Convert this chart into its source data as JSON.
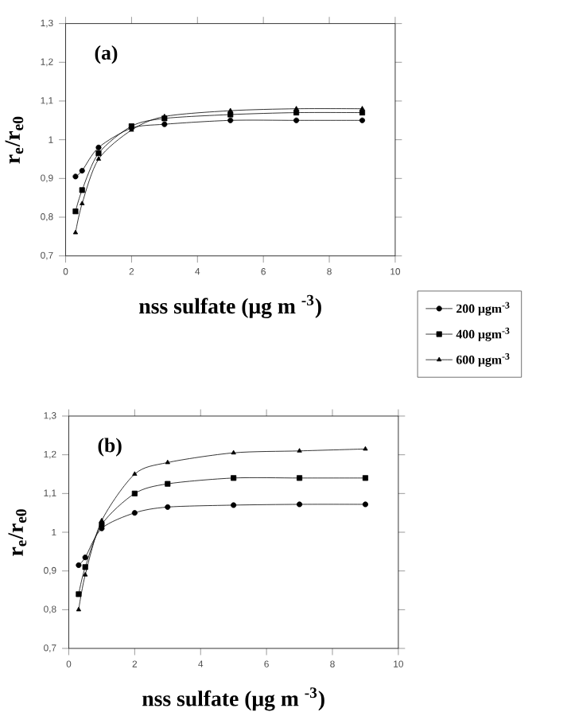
{
  "chart_data": [
    {
      "type": "line",
      "title": "(a)",
      "xlabel": "nss sulfate (μg m $^{-3}$)",
      "ylabel": "r$_{e}$/r$_{e0}$",
      "line_style": "solid",
      "legend": "bottom right",
      "xlim": [
        0,
        10
      ],
      "xticks": [
        0,
        2,
        4,
        6,
        8,
        10
      ],
      "ylim": [
        0.7,
        1.3
      ],
      "yticks": [
        {
          "value": 0.7,
          "label": "0,7"
        },
        {
          "value": 0.8,
          "label": "0,8"
        },
        {
          "value": 0.9,
          "label": "0,9"
        },
        1,
        {
          "value": 1.1,
          "label": "1,1"
        },
        {
          "value": 1.2,
          "label": "1,2"
        },
        {
          "value": 1.3,
          "label": "1,3"
        }
      ],
      "x": [
        0.3,
        0.5,
        1,
        2,
        3,
        5,
        7,
        9
      ],
      "series": [
        {
          "name": "200 μgm$^{-3}$",
          "color": "#000000",
          "marker": "circle",
          "values": [
            0.905,
            0.92,
            0.98,
            1.03,
            1.04,
            1.05,
            1.05,
            1.05
          ]
        },
        {
          "name": "400 μgm$^{-3}$",
          "color": "#000000",
          "marker": "square",
          "values": [
            0.815,
            0.87,
            0.965,
            1.035,
            1.055,
            1.065,
            1.07,
            1.07
          ]
        },
        {
          "name": "600 μgm$^{-3}$",
          "color": "#000000",
          "marker": "triangle",
          "values": [
            0.76,
            0.835,
            0.95,
            1.025,
            1.06,
            1.075,
            1.08,
            1.08
          ]
        }
      ]
    },
    {
      "type": "line",
      "title": "(b)",
      "xlabel": "nss sulfate (μg m $^{-3}$)",
      "ylabel": "r$_{e}$/r$_{e0}$",
      "line_style": "solid",
      "xlim": [
        0,
        10
      ],
      "xticks": [
        0,
        2,
        4,
        6,
        8,
        10
      ],
      "ylim": [
        0.7,
        1.3
      ],
      "yticks": [
        {
          "value": 0.7,
          "label": "0,7"
        },
        {
          "value": 0.8,
          "label": "0,8"
        },
        {
          "value": 0.9,
          "label": "0,9"
        },
        1,
        {
          "value": 1.1,
          "label": "1,1"
        },
        {
          "value": 1.2,
          "label": "1,2"
        },
        {
          "value": 1.3,
          "label": "1,3"
        }
      ],
      "x": [
        0.3,
        0.5,
        1,
        2,
        3,
        5,
        7,
        9
      ],
      "series": [
        {
          "color": "#000000",
          "marker": "circle",
          "values": [
            0.915,
            0.935,
            1.01,
            1.05,
            1.065,
            1.07,
            1.072,
            1.072
          ]
        },
        {
          "color": "#000000",
          "marker": "square",
          "values": [
            0.84,
            0.91,
            1.02,
            1.1,
            1.125,
            1.14,
            1.14,
            1.14
          ]
        },
        {
          "color": "#000000",
          "marker": "triangle",
          "values": [
            0.8,
            0.89,
            1.03,
            1.15,
            1.18,
            1.205,
            1.21,
            1.215
          ]
        }
      ]
    }
  ]
}
